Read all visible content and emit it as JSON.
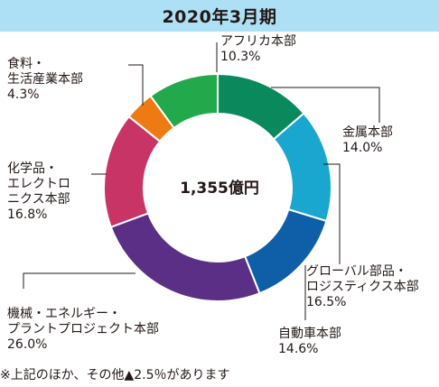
{
  "chart_data": {
    "type": "pie",
    "title": "2020年3月期",
    "center_label": "1,355億円",
    "footnote": "※上記のほか、その他▲2.5％があります",
    "slices": [
      {
        "name": "金属本部",
        "value_label": "14.0%",
        "value": 14.0,
        "color": "#0a8a5c"
      },
      {
        "name": "グローバル部品・ロジスティクス本部",
        "value_label": "16.5%",
        "value": 16.5,
        "color": "#1aa7cf"
      },
      {
        "name": "自動車本部",
        "value_label": "14.6%",
        "value": 14.6,
        "color": "#0f5ea8"
      },
      {
        "name": "機械・エネルギー・プラントプロジェクト本部",
        "value_label": "26.0%",
        "value": 26.0,
        "color": "#5b2f85"
      },
      {
        "name": "化学品・エレクトロニクス本部",
        "value_label": "16.8%",
        "value": 16.8,
        "color": "#c83466"
      },
      {
        "name": "食料・生活産業本部",
        "value_label": "4.3%",
        "value": 4.3,
        "color": "#ee7a14"
      },
      {
        "name": "アフリカ本部",
        "value_label": "10.3%",
        "value": 10.3,
        "color": "#22a94b"
      }
    ]
  },
  "labels": {
    "kinzoku": {
      "line1": "金属本部"
    },
    "global": {
      "line1": "グローバル部品・",
      "line2": "ロジスティクス本部"
    },
    "jidosha": {
      "line1": "自動車本部"
    },
    "kikai": {
      "line1": "機械・エネルギー・",
      "line2": "プラントプロジェクト本部"
    },
    "kagaku": {
      "line1": "化学品・",
      "line2": "エレクトロ",
      "line3": "ニクス本部"
    },
    "shokuryo": {
      "line1": "食料・",
      "line2": "生活産業本部"
    },
    "africa": {
      "line1": "アフリカ本部"
    }
  },
  "colors": {
    "title_bar": "#aee0f5",
    "leader_line": "#231815"
  }
}
